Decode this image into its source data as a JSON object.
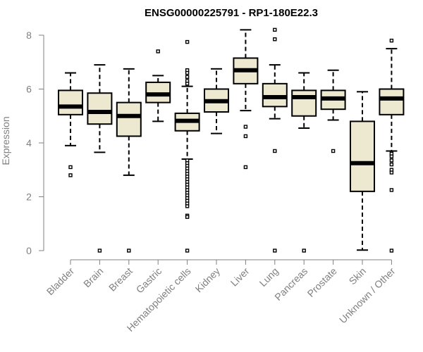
{
  "colors": {
    "box_fill": "#EDE8D0",
    "box_stroke": "#000000",
    "axis": "#808080",
    "title": "#000000"
  },
  "chart_data": {
    "type": "boxplot",
    "title": "ENSG00000225791 - RP1-180E22.3",
    "xlabel": "",
    "ylabel": "Expression",
    "ylim": [
      0,
      8.2
    ],
    "yticks": [
      0,
      2,
      4,
      6,
      8
    ],
    "categories": [
      "Bladder",
      "Brain",
      "Breast",
      "Gastric",
      "Hematopoietic cells",
      "Kidney",
      "Liver",
      "Lung",
      "Pancreas",
      "Prostate",
      "Skin",
      "Unknown / Other"
    ],
    "boxes": [
      {
        "name": "Bladder",
        "lower_whisker": 3.9,
        "q1": 5.05,
        "median": 5.35,
        "q3": 5.95,
        "upper_whisker": 6.6,
        "outliers": [
          3.1,
          2.8
        ]
      },
      {
        "name": "Brain",
        "lower_whisker": 3.65,
        "q1": 4.7,
        "median": 5.15,
        "q3": 5.85,
        "upper_whisker": 6.9,
        "outliers": [
          0
        ]
      },
      {
        "name": "Breast",
        "lower_whisker": 2.8,
        "q1": 4.25,
        "median": 5.0,
        "q3": 5.5,
        "upper_whisker": 6.75,
        "outliers": [
          0
        ]
      },
      {
        "name": "Gastric",
        "lower_whisker": 4.8,
        "q1": 5.5,
        "median": 5.8,
        "q3": 6.25,
        "upper_whisker": 6.5,
        "outliers": [
          7.4
        ]
      },
      {
        "name": "Hematopoietic cells",
        "lower_whisker": 3.4,
        "q1": 4.45,
        "median": 4.82,
        "q3": 5.1,
        "upper_whisker": 6.1,
        "outliers": [
          7.75,
          6.7,
          6.6,
          6.45,
          6.3,
          6.2,
          3.35,
          3.25,
          3.15,
          3.05,
          2.95,
          2.85,
          2.75,
          2.65,
          2.55,
          2.45,
          2.35,
          2.25,
          2.15,
          2.05,
          1.95,
          1.85,
          1.75,
          1.65,
          1.3,
          1.25,
          0
        ]
      },
      {
        "name": "Kidney",
        "lower_whisker": 4.35,
        "q1": 5.15,
        "median": 5.55,
        "q3": 6.0,
        "upper_whisker": 6.75,
        "outliers": []
      },
      {
        "name": "Liver",
        "lower_whisker": 5.2,
        "q1": 6.2,
        "median": 6.7,
        "q3": 7.15,
        "upper_whisker": 8.2,
        "outliers": [
          4.6,
          4.25,
          3.1
        ]
      },
      {
        "name": "Lung",
        "lower_whisker": 4.9,
        "q1": 5.35,
        "median": 5.7,
        "q3": 6.2,
        "upper_whisker": 6.9,
        "outliers": [
          8.2,
          7.85,
          3.7,
          0
        ]
      },
      {
        "name": "Pancreas",
        "lower_whisker": 4.55,
        "q1": 5.0,
        "median": 5.7,
        "q3": 5.95,
        "upper_whisker": 6.6,
        "outliers": [
          0
        ]
      },
      {
        "name": "Prostate",
        "lower_whisker": 4.85,
        "q1": 5.25,
        "median": 5.65,
        "q3": 5.95,
        "upper_whisker": 6.7,
        "outliers": [
          3.7
        ]
      },
      {
        "name": "Skin",
        "lower_whisker": 0.02,
        "q1": 2.2,
        "median": 3.25,
        "q3": 4.8,
        "upper_whisker": 5.9,
        "outliers": []
      },
      {
        "name": "Unknown / Other",
        "lower_whisker": 3.7,
        "q1": 5.05,
        "median": 5.65,
        "q3": 6.0,
        "upper_whisker": 7.5,
        "outliers": [
          7.8,
          3.6,
          3.5,
          3.35,
          3.2,
          3.0,
          2.9,
          2.25,
          0
        ]
      }
    ]
  }
}
